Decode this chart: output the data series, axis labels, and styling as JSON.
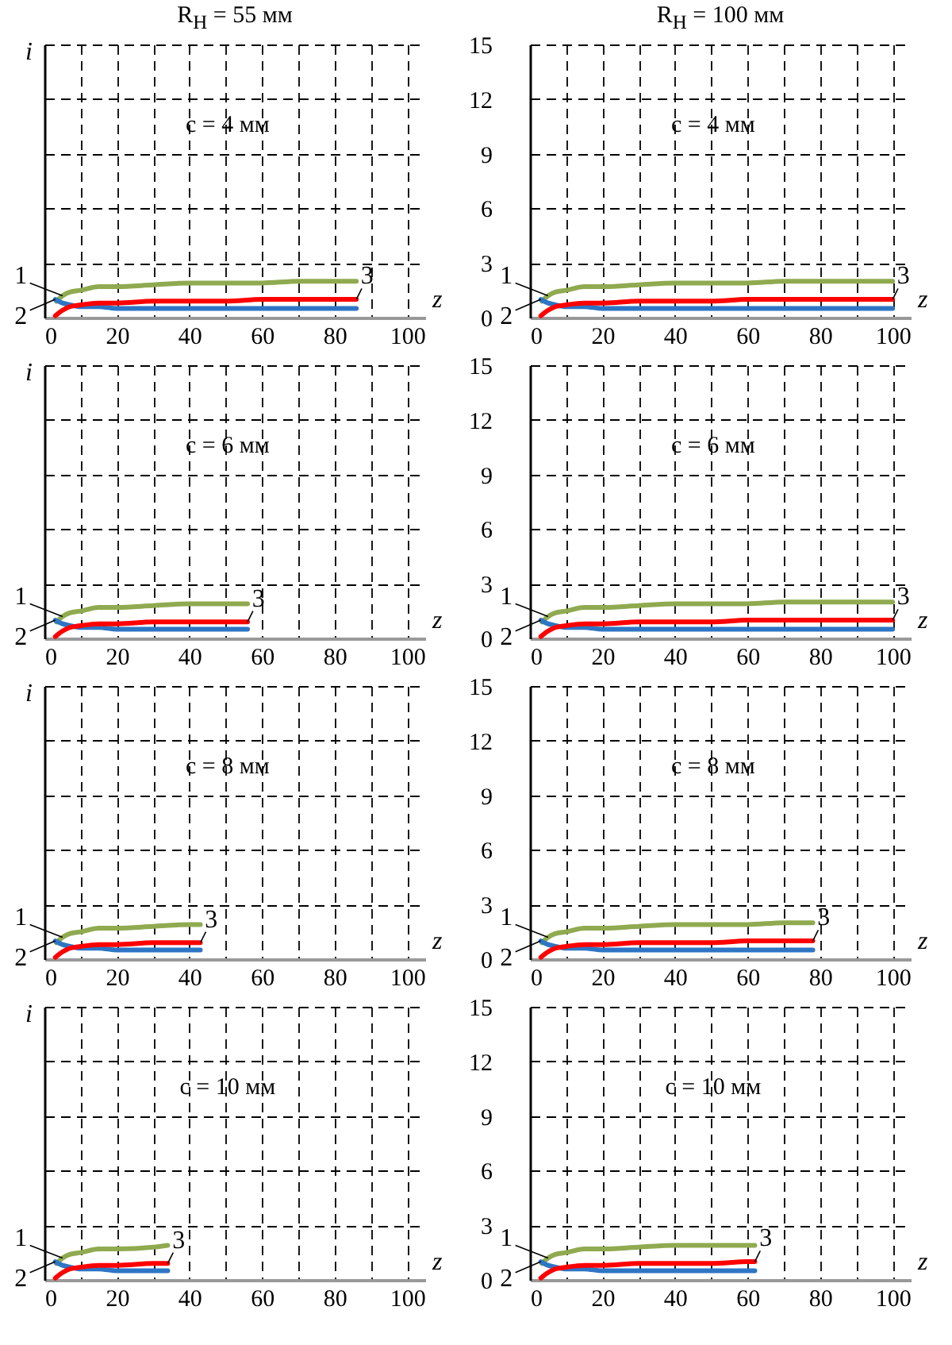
{
  "chart_data": [
    {
      "type": "line",
      "title": "R$_{Н}$ = 55 мм",
      "annotations": [
        "c = 4 мм"
      ],
      "xlabel": "z",
      "ylabel": "i",
      "xlim": [
        0,
        105
      ],
      "ylim": [
        0,
        15
      ],
      "xticks": [
        0,
        {
          "value": 10,
          "label": null
        },
        20,
        {
          "value": 30,
          "label": null
        },
        40,
        {
          "value": 50,
          "label": null
        },
        60,
        {
          "value": 70,
          "label": null
        },
        80,
        {
          "value": 90,
          "label": null
        },
        100
      ],
      "yticks": [
        0,
        3,
        6,
        9,
        12,
        15
      ],
      "tick_labels": "x",
      "grid": true,
      "series": [
        {
          "name": "1",
          "color": "#8faa4f",
          "x": [
            3.3,
            5,
            7,
            10,
            15,
            20,
            30,
            40,
            50,
            60,
            70,
            80,
            86
          ],
          "values": [
            0.9,
            1.2,
            1.4,
            1.5,
            1.7,
            1.7,
            1.8,
            1.9,
            1.9,
            1.9,
            2.0,
            2.0,
            2.0
          ]
        },
        {
          "name": "2",
          "color": "#2e75c4",
          "x": [
            3,
            5,
            7,
            10,
            15,
            20,
            30,
            40,
            50,
            60,
            70,
            80,
            86
          ],
          "values": [
            1.0,
            0.8,
            0.7,
            0.6,
            0.6,
            0.5,
            0.5,
            0.5,
            0.5,
            0.5,
            0.5,
            0.5,
            0.5
          ]
        },
        {
          "name": "3",
          "color": "#ff0000",
          "x": [
            3,
            5,
            7,
            10,
            15,
            20,
            30,
            40,
            50,
            60,
            70,
            80,
            86
          ],
          "values": [
            0.1,
            0.4,
            0.6,
            0.7,
            0.8,
            0.8,
            0.9,
            0.9,
            0.9,
            1.0,
            1.0,
            1.0,
            1.0
          ]
        }
      ]
    },
    {
      "type": "line",
      "title": "R$_{Н}$ = 100 мм",
      "annotations": [
        "c = 4 мм"
      ],
      "xlabel": "z",
      "xlim": [
        0,
        105
      ],
      "ylim": [
        0,
        15
      ],
      "xticks": [
        0,
        {
          "value": 10,
          "label": null
        },
        20,
        {
          "value": 30,
          "label": null
        },
        40,
        {
          "value": 50,
          "label": null
        },
        60,
        {
          "value": 70,
          "label": null
        },
        80,
        {
          "value": 90,
          "label": null
        },
        100
      ],
      "yticks": [
        0,
        3,
        6,
        9,
        12,
        15
      ],
      "grid": true,
      "series": [
        {
          "name": "1",
          "color": "#8faa4f",
          "x": [
            3.3,
            5,
            7,
            10,
            15,
            20,
            30,
            40,
            50,
            60,
            70,
            80,
            90,
            100
          ],
          "values": [
            0.9,
            1.2,
            1.4,
            1.5,
            1.7,
            1.7,
            1.8,
            1.9,
            1.9,
            1.9,
            2.0,
            2.0,
            2.0,
            2.0
          ]
        },
        {
          "name": "2",
          "color": "#2e75c4",
          "x": [
            3,
            5,
            7,
            10,
            15,
            20,
            30,
            40,
            50,
            60,
            70,
            80,
            90,
            100
          ],
          "values": [
            1.0,
            0.8,
            0.7,
            0.6,
            0.6,
            0.5,
            0.5,
            0.5,
            0.5,
            0.5,
            0.5,
            0.5,
            0.5,
            0.5
          ]
        },
        {
          "name": "3",
          "color": "#ff0000",
          "x": [
            3,
            5,
            7,
            10,
            15,
            20,
            30,
            40,
            50,
            60,
            70,
            80,
            90,
            100
          ],
          "values": [
            0.1,
            0.4,
            0.6,
            0.7,
            0.8,
            0.8,
            0.9,
            0.9,
            0.9,
            1.0,
            1.0,
            1.0,
            1.0,
            1.0
          ]
        }
      ]
    },
    {
      "type": "line",
      "annotations": [
        "c = 6 мм"
      ],
      "xlabel": "z",
      "ylabel": "i",
      "xlim": [
        0,
        105
      ],
      "ylim": [
        0,
        15
      ],
      "xticks": [
        0,
        {
          "value": 10,
          "label": null
        },
        20,
        {
          "value": 30,
          "label": null
        },
        40,
        {
          "value": 50,
          "label": null
        },
        60,
        {
          "value": 70,
          "label": null
        },
        80,
        {
          "value": 90,
          "label": null
        },
        100
      ],
      "yticks": [
        0,
        3,
        6,
        9,
        12,
        15
      ],
      "tick_labels": "x",
      "grid": true,
      "series": [
        {
          "name": "1",
          "color": "#8faa4f",
          "x": [
            3.3,
            5,
            7,
            10,
            15,
            20,
            30,
            40,
            50,
            56
          ],
          "values": [
            0.9,
            1.2,
            1.4,
            1.5,
            1.7,
            1.7,
            1.8,
            1.9,
            1.9,
            1.9
          ]
        },
        {
          "name": "2",
          "color": "#2e75c4",
          "x": [
            3,
            5,
            7,
            10,
            15,
            20,
            30,
            40,
            50,
            56
          ],
          "values": [
            1.0,
            0.8,
            0.7,
            0.6,
            0.6,
            0.5,
            0.5,
            0.5,
            0.5,
            0.5
          ]
        },
        {
          "name": "3",
          "color": "#ff0000",
          "x": [
            3,
            5,
            7,
            10,
            15,
            20,
            30,
            40,
            50,
            56
          ],
          "values": [
            0.1,
            0.4,
            0.6,
            0.7,
            0.8,
            0.8,
            0.9,
            0.9,
            0.9,
            0.9
          ]
        }
      ]
    },
    {
      "type": "line",
      "annotations": [
        "c = 6 мм"
      ],
      "xlabel": "z",
      "xlim": [
        0,
        105
      ],
      "ylim": [
        0,
        15
      ],
      "xticks": [
        0,
        {
          "value": 10,
          "label": null
        },
        20,
        {
          "value": 30,
          "label": null
        },
        40,
        {
          "value": 50,
          "label": null
        },
        60,
        {
          "value": 70,
          "label": null
        },
        80,
        {
          "value": 90,
          "label": null
        },
        100
      ],
      "yticks": [
        0,
        3,
        6,
        9,
        12,
        15
      ],
      "grid": true,
      "series": [
        {
          "name": "1",
          "color": "#8faa4f",
          "x": [
            3.3,
            5,
            7,
            10,
            15,
            20,
            30,
            40,
            50,
            60,
            70,
            80,
            90,
            100
          ],
          "values": [
            0.9,
            1.2,
            1.4,
            1.5,
            1.7,
            1.7,
            1.8,
            1.9,
            1.9,
            1.9,
            2.0,
            2.0,
            2.0,
            2.0
          ]
        },
        {
          "name": "2",
          "color": "#2e75c4",
          "x": [
            3,
            5,
            7,
            10,
            15,
            20,
            30,
            40,
            50,
            60,
            70,
            80,
            90,
            100
          ],
          "values": [
            1.0,
            0.8,
            0.7,
            0.6,
            0.6,
            0.5,
            0.5,
            0.5,
            0.5,
            0.5,
            0.5,
            0.5,
            0.5,
            0.5
          ]
        },
        {
          "name": "3",
          "color": "#ff0000",
          "x": [
            3,
            5,
            7,
            10,
            15,
            20,
            30,
            40,
            50,
            60,
            70,
            80,
            90,
            100
          ],
          "values": [
            0.1,
            0.4,
            0.6,
            0.7,
            0.8,
            0.8,
            0.9,
            0.9,
            0.9,
            1.0,
            1.0,
            1.0,
            1.0,
            1.0
          ]
        }
      ]
    },
    {
      "type": "line",
      "annotations": [
        "c = 8 мм"
      ],
      "xlabel": "z",
      "ylabel": "i",
      "xlim": [
        0,
        105
      ],
      "ylim": [
        0,
        15
      ],
      "xticks": [
        0,
        {
          "value": 10,
          "label": null
        },
        20,
        {
          "value": 30,
          "label": null
        },
        40,
        {
          "value": 50,
          "label": null
        },
        60,
        {
          "value": 70,
          "label": null
        },
        80,
        {
          "value": 90,
          "label": null
        },
        100
      ],
      "yticks": [
        0,
        3,
        6,
        9,
        12,
        15
      ],
      "tick_labels": "x",
      "grid": true,
      "series": [
        {
          "name": "1",
          "color": "#8faa4f",
          "x": [
            3.3,
            5,
            7,
            10,
            15,
            20,
            30,
            40,
            43
          ],
          "values": [
            0.9,
            1.2,
            1.4,
            1.5,
            1.7,
            1.7,
            1.8,
            1.9,
            1.9
          ]
        },
        {
          "name": "2",
          "color": "#2e75c4",
          "x": [
            3,
            5,
            7,
            10,
            15,
            20,
            30,
            40,
            43
          ],
          "values": [
            1.0,
            0.8,
            0.7,
            0.6,
            0.6,
            0.5,
            0.5,
            0.5,
            0.5
          ]
        },
        {
          "name": "3",
          "color": "#ff0000",
          "x": [
            3,
            5,
            7,
            10,
            15,
            20,
            30,
            40,
            43
          ],
          "values": [
            0.1,
            0.4,
            0.6,
            0.7,
            0.8,
            0.8,
            0.9,
            0.9,
            0.9
          ]
        }
      ]
    },
    {
      "type": "line",
      "annotations": [
        "c = 8 мм"
      ],
      "xlabel": "z",
      "xlim": [
        0,
        105
      ],
      "ylim": [
        0,
        15
      ],
      "xticks": [
        0,
        {
          "value": 10,
          "label": null
        },
        20,
        {
          "value": 30,
          "label": null
        },
        40,
        {
          "value": 50,
          "label": null
        },
        60,
        {
          "value": 70,
          "label": null
        },
        80,
        {
          "value": 90,
          "label": null
        },
        100
      ],
      "yticks": [
        0,
        3,
        6,
        9,
        12,
        15
      ],
      "grid": true,
      "series": [
        {
          "name": "1",
          "color": "#8faa4f",
          "x": [
            3.3,
            5,
            7,
            10,
            15,
            20,
            30,
            40,
            50,
            60,
            70,
            78
          ],
          "values": [
            0.9,
            1.2,
            1.4,
            1.5,
            1.7,
            1.7,
            1.8,
            1.9,
            1.9,
            1.9,
            2.0,
            2.0
          ]
        },
        {
          "name": "2",
          "color": "#2e75c4",
          "x": [
            3,
            5,
            7,
            10,
            15,
            20,
            30,
            40,
            50,
            60,
            70,
            78
          ],
          "values": [
            1.0,
            0.8,
            0.7,
            0.6,
            0.6,
            0.5,
            0.5,
            0.5,
            0.5,
            0.5,
            0.5,
            0.5
          ]
        },
        {
          "name": "3",
          "color": "#ff0000",
          "x": [
            3,
            5,
            7,
            10,
            15,
            20,
            30,
            40,
            50,
            60,
            70,
            78
          ],
          "values": [
            0.1,
            0.4,
            0.6,
            0.7,
            0.8,
            0.8,
            0.9,
            0.9,
            0.9,
            1.0,
            1.0,
            1.0
          ]
        }
      ]
    },
    {
      "type": "line",
      "annotations": [
        "c = 10 мм"
      ],
      "xlabel": "z",
      "ylabel": "i",
      "xlim": [
        0,
        105
      ],
      "ylim": [
        0,
        15
      ],
      "xticks": [
        0,
        {
          "value": 10,
          "label": null
        },
        20,
        {
          "value": 30,
          "label": null
        },
        40,
        {
          "value": 50,
          "label": null
        },
        60,
        {
          "value": 70,
          "label": null
        },
        80,
        {
          "value": 90,
          "label": null
        },
        100
      ],
      "yticks": [
        0,
        3,
        6,
        9,
        12,
        15
      ],
      "tick_labels": "x",
      "grid": true,
      "series": [
        {
          "name": "1",
          "color": "#8faa4f",
          "x": [
            3.3,
            5,
            7,
            10,
            15,
            20,
            30,
            34
          ],
          "values": [
            0.9,
            1.2,
            1.4,
            1.5,
            1.7,
            1.7,
            1.8,
            1.9
          ]
        },
        {
          "name": "2",
          "color": "#2e75c4",
          "x": [
            3,
            5,
            7,
            10,
            15,
            20,
            30,
            34
          ],
          "values": [
            1.0,
            0.8,
            0.7,
            0.6,
            0.6,
            0.5,
            0.5,
            0.5
          ]
        },
        {
          "name": "3",
          "color": "#ff0000",
          "x": [
            3,
            5,
            7,
            10,
            15,
            20,
            30,
            34
          ],
          "values": [
            0.1,
            0.4,
            0.6,
            0.7,
            0.8,
            0.8,
            0.9,
            0.9
          ]
        }
      ]
    },
    {
      "type": "line",
      "annotations": [
        "c = 10 мм"
      ],
      "xlabel": "z",
      "xlim": [
        0,
        105
      ],
      "ylim": [
        0,
        15
      ],
      "xticks": [
        0,
        {
          "value": 10,
          "label": null
        },
        20,
        {
          "value": 30,
          "label": null
        },
        40,
        {
          "value": 50,
          "label": null
        },
        60,
        {
          "value": 70,
          "label": null
        },
        80,
        {
          "value": 90,
          "label": null
        },
        100
      ],
      "yticks": [
        0,
        3,
        6,
        9,
        12,
        15
      ],
      "grid": true,
      "series": [
        {
          "name": "1",
          "color": "#8faa4f",
          "x": [
            3.3,
            5,
            7,
            10,
            15,
            20,
            30,
            40,
            50,
            60,
            62
          ],
          "values": [
            0.9,
            1.2,
            1.4,
            1.5,
            1.7,
            1.7,
            1.8,
            1.9,
            1.9,
            1.9,
            1.9
          ]
        },
        {
          "name": "2",
          "color": "#2e75c4",
          "x": [
            3,
            5,
            7,
            10,
            15,
            20,
            30,
            40,
            50,
            60,
            62
          ],
          "values": [
            1.0,
            0.8,
            0.7,
            0.6,
            0.6,
            0.5,
            0.5,
            0.5,
            0.5,
            0.5,
            0.5
          ]
        },
        {
          "name": "3",
          "color": "#ff0000",
          "x": [
            3,
            5,
            7,
            10,
            15,
            20,
            30,
            40,
            50,
            60,
            62
          ],
          "values": [
            0.1,
            0.4,
            0.6,
            0.7,
            0.8,
            0.8,
            0.9,
            0.9,
            0.9,
            1.0,
            1.0
          ]
        }
      ]
    }
  ]
}
